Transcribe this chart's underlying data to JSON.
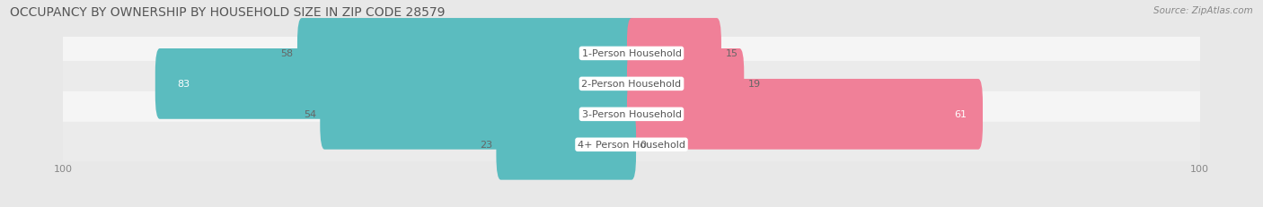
{
  "title": "OCCUPANCY BY OWNERSHIP BY HOUSEHOLD SIZE IN ZIP CODE 28579",
  "source": "Source: ZipAtlas.com",
  "categories": [
    "1-Person Household",
    "2-Person Household",
    "3-Person Household",
    "4+ Person Household"
  ],
  "owner_values": [
    58,
    83,
    54,
    23
  ],
  "renter_values": [
    15,
    19,
    61,
    0
  ],
  "owner_color": "#5bbcbf",
  "renter_color": "#f08098",
  "axis_max": 100,
  "bg_color": "#e8e8e8",
  "row_bg_color": "#f5f5f5",
  "row_bg_color_alt": "#ebebeb",
  "title_fontsize": 10,
  "source_fontsize": 7.5,
  "tick_fontsize": 8,
  "label_fontsize": 8,
  "category_fontsize": 8
}
